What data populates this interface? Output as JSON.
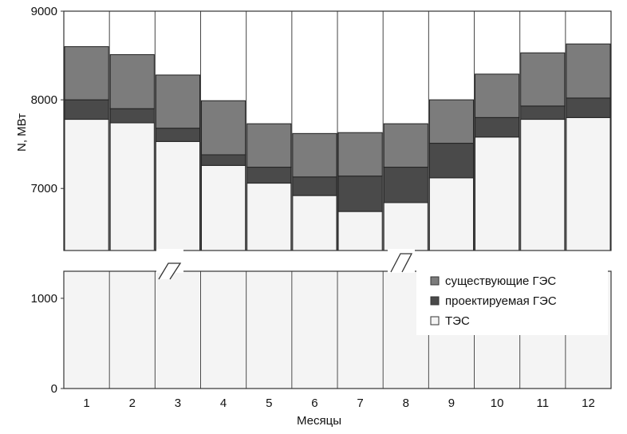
{
  "chart_data": {
    "type": "bar",
    "stacked": true,
    "broken_axis": true,
    "categories": [
      "1",
      "2",
      "3",
      "4",
      "5",
      "6",
      "7",
      "8",
      "9",
      "10",
      "11",
      "12"
    ],
    "series": [
      {
        "name": "ТЭС",
        "key": "tes",
        "color": "#f4f4f4",
        "values": [
          7780,
          7740,
          7530,
          7260,
          7060,
          6920,
          6740,
          6840,
          7120,
          7580,
          7780,
          7800
        ]
      },
      {
        "name": "проектируемая ГЭС",
        "key": "projected",
        "color": "#4a4a4a",
        "values": [
          220,
          160,
          150,
          120,
          180,
          210,
          400,
          400,
          390,
          220,
          150,
          220
        ]
      },
      {
        "name": "существующие ГЭС",
        "key": "existing",
        "color": "#7c7c7c",
        "values": [
          600,
          610,
          600,
          610,
          490,
          490,
          490,
          490,
          490,
          490,
          600,
          610
        ]
      }
    ],
    "xlabel": "Месяцы",
    "ylabel": "N, МВт",
    "yticks_upper": [
      7000,
      8000,
      9000
    ],
    "yticks_lower": [
      0,
      1000
    ],
    "ylim_upper": [
      6300,
      9000
    ],
    "ylim_lower": [
      0,
      1300
    ],
    "legend_position": "lower-right"
  }
}
